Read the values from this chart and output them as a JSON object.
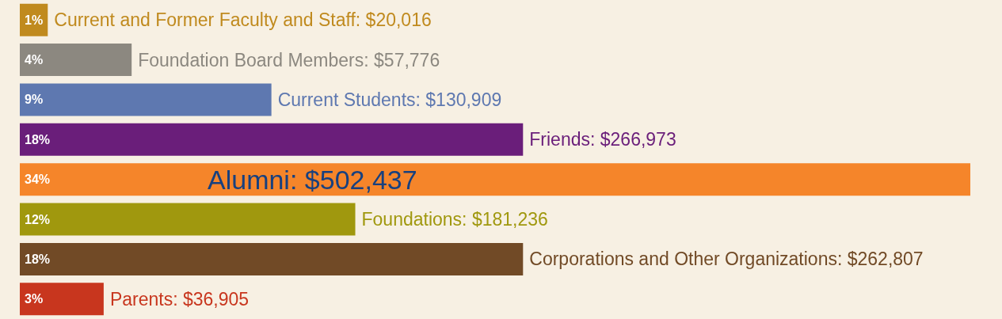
{
  "chart_data": {
    "type": "bar",
    "orientation": "horizontal",
    "categories": [
      "Current and Former Faculty and Staff: $20,016",
      "Foundation Board Members: $57,776",
      "Current Students: $130,909",
      "Friends: $266,973",
      "Alumni: $502,437",
      "Foundations: $181,236",
      "Corporations and Other Organizations: $262,807",
      "Parents: $36,905"
    ],
    "values": [
      1,
      4,
      9,
      18,
      34,
      12,
      18,
      3
    ],
    "value_labels": [
      "1%",
      "4%",
      "9%",
      "18%",
      "34%",
      "12%",
      "18%",
      "3%"
    ],
    "colors": [
      "#c08a1e",
      "#8c8880",
      "#5e78b0",
      "#6a1e7a",
      "#f5852a",
      "#a0980e",
      "#714a26",
      "#c8361e"
    ]
  }
}
